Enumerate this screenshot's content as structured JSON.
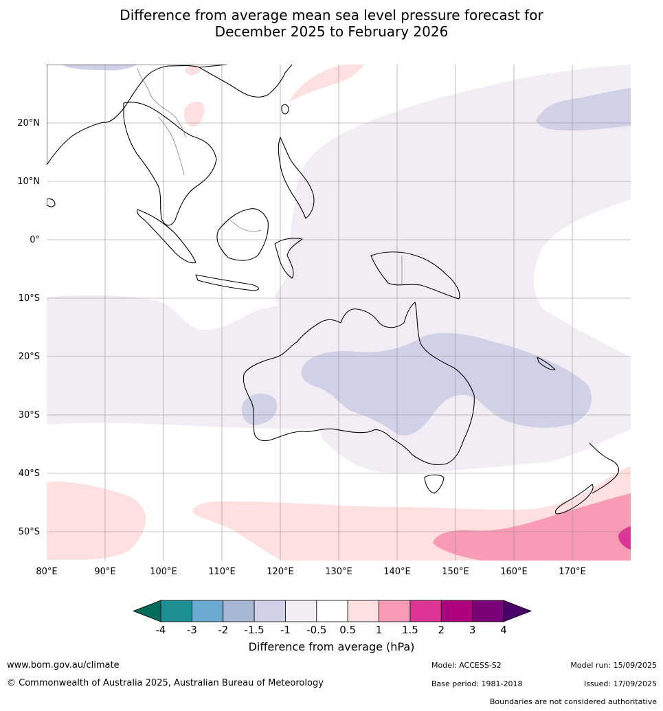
{
  "title_line1": "Difference from average mean sea level pressure forecast for",
  "title_line2": "December 2025 to February 2026",
  "map": {
    "lon_range": [
      80,
      180
    ],
    "lat_range": [
      -55,
      30
    ],
    "lon_labels": [
      "80°E",
      "90°E",
      "100°E",
      "110°E",
      "120°E",
      "130°E",
      "140°E",
      "150°E",
      "160°E",
      "170°E"
    ],
    "lat_labels": [
      "20°N",
      "10°N",
      "0°",
      "10°S",
      "20°S",
      "30°S",
      "40°S",
      "50°S"
    ],
    "shading": [
      {
        "region": "western and central Pacific, northern Australia",
        "category": "-1 to -0.5",
        "color": "#f2ecf5"
      },
      {
        "region": "southern Indian Ocean band 10°S–30°S",
        "category": "-1 to -0.5",
        "color": "#f2ecf5"
      },
      {
        "region": "interior and eastern Australia, Tasman Sea",
        "category": "-1.5 to -1",
        "color": "#d0d1e6"
      },
      {
        "region": "North Pacific near 20°N",
        "category": "-1.5 to -1",
        "color": "#d0d1e6"
      },
      {
        "region": "Southern Ocean south of 45°S",
        "category": "0.5 to 1",
        "color": "#fde0df"
      },
      {
        "region": "south-east of New Zealand",
        "category": "1 to 1.5",
        "color": "#f99bb5"
      },
      {
        "region": "far south-east corner",
        "category": "1.5 to 2",
        "color": "#dd3497"
      }
    ]
  },
  "colorbar": {
    "ticks": [
      "-4",
      "-3",
      "-2",
      "-1.5",
      "-1",
      "-0.5",
      "0.5",
      "1",
      "1.5",
      "2",
      "3",
      "4"
    ],
    "colors": [
      "#1d9095",
      "#6aaad1",
      "#a7b6d3",
      "#d0d1e6",
      "#f2ecf5",
      "#ffffff",
      "#fde0df",
      "#f99bb5",
      "#dd3497",
      "#ae017e",
      "#7a0177"
    ],
    "under_color": "#016c59",
    "over_color": "#49006a",
    "label": "Difference from average (hPa)"
  },
  "footer": {
    "url": "www.bom.gov.au/climate",
    "copyright": "© Commonwealth of Australia 2025, Australian Bureau of Meteorology",
    "model": "Model: ACCESS-S2",
    "model_run": "Model run: 15/09/2025",
    "base_period": "Base period: 1981-2018",
    "issued": "Issued: 17/09/2025",
    "disclaimer": "Boundaries are not considered authoritative"
  }
}
